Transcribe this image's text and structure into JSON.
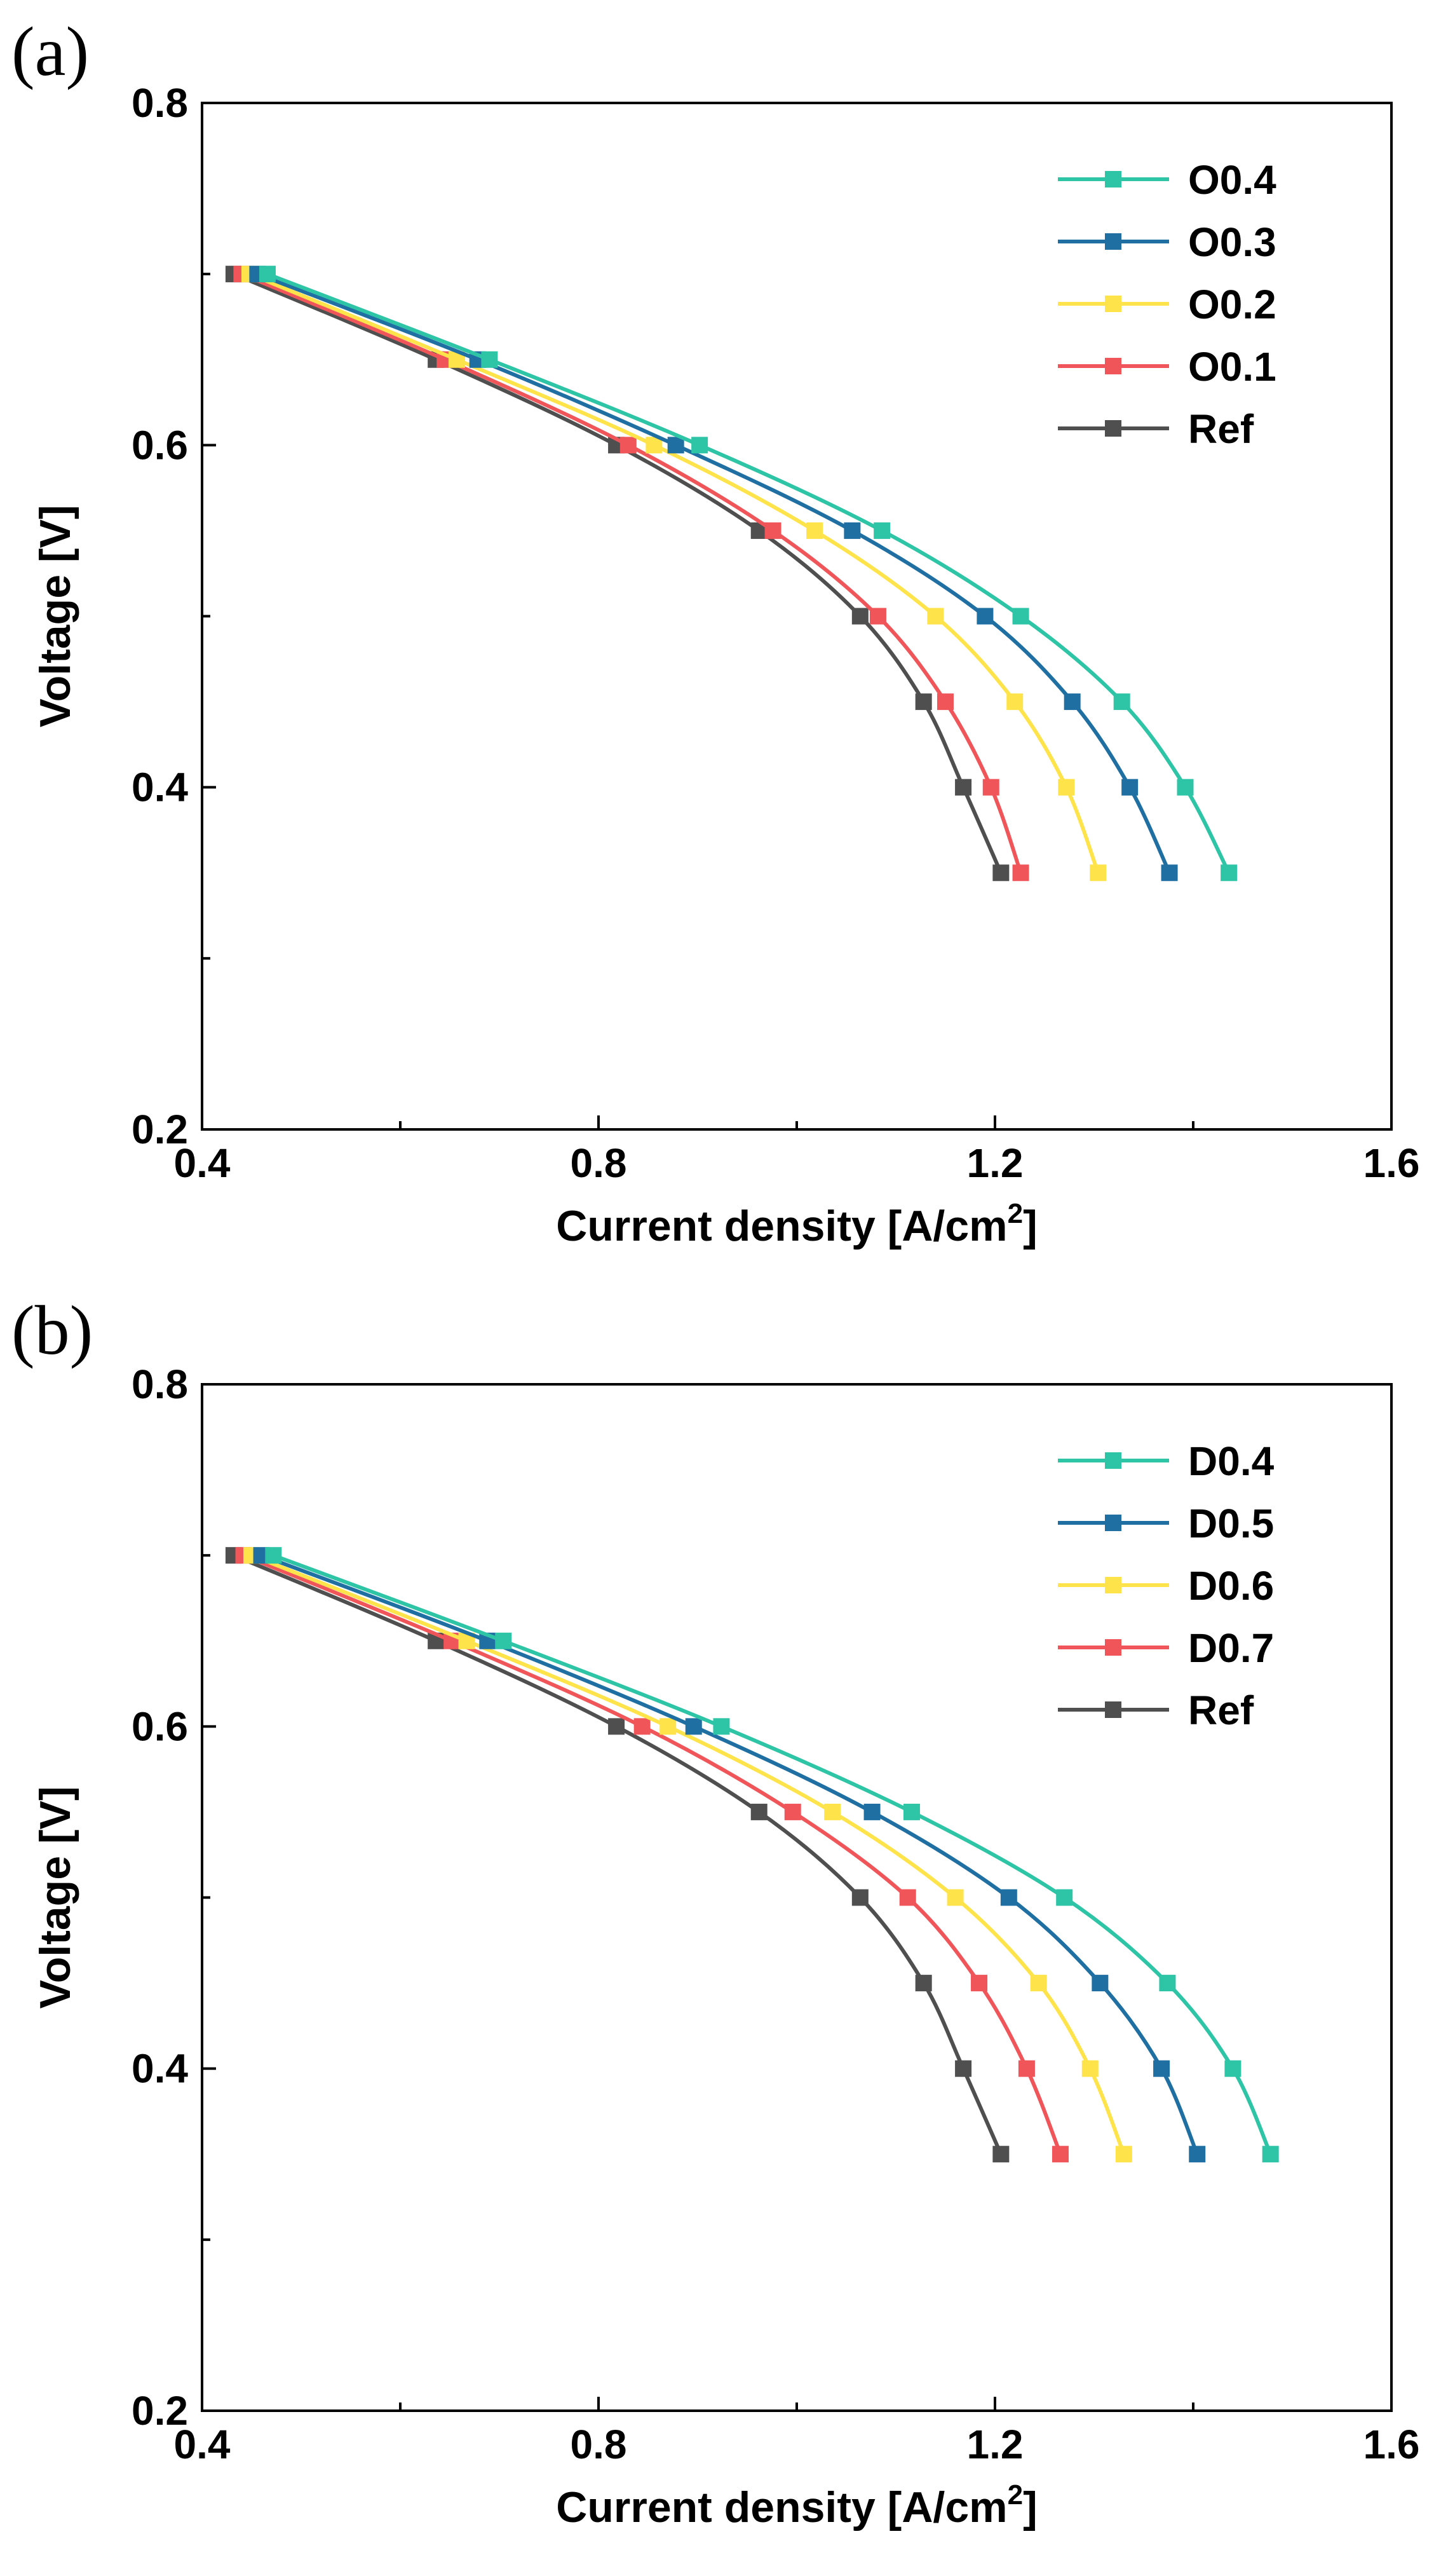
{
  "chart_data": [
    {
      "type": "line",
      "panel_label": "(a)",
      "title": "",
      "xlabel": "Current density [A/cm",
      "xlabel_sup": "2",
      "xlabel_end": "]",
      "ylabel": "Voltage [V]",
      "xlim": [
        0.4,
        1.6
      ],
      "ylim": [
        0.2,
        0.8
      ],
      "xticks": [
        "0.4",
        "0.8",
        "1.2",
        "1.6"
      ],
      "yticks": [
        "0.2",
        "0.4",
        "0.6",
        "0.8"
      ],
      "y": [
        0.7,
        0.65,
        0.6,
        0.55,
        0.5,
        0.45,
        0.4,
        0.35
      ],
      "legend_position": "top-right",
      "series": [
        {
          "name": "O0.4",
          "color": "#2ec4a6",
          "x": [
            0.466,
            0.69,
            0.902,
            1.086,
            1.226,
            1.328,
            1.392,
            1.436
          ]
        },
        {
          "name": "O0.3",
          "color": "#1f6fa3",
          "x": [
            0.456,
            0.678,
            0.878,
            1.056,
            1.19,
            1.278,
            1.336,
            1.376
          ]
        },
        {
          "name": "O0.2",
          "color": "#ffe34a",
          "x": [
            0.448,
            0.657,
            0.856,
            1.018,
            1.14,
            1.22,
            1.272,
            1.304
          ]
        },
        {
          "name": "O0.1",
          "color": "#f0555a",
          "x": [
            0.44,
            0.645,
            0.83,
            0.976,
            1.082,
            1.15,
            1.196,
            1.226
          ]
        },
        {
          "name": "Ref",
          "color": "#4f4f4f",
          "x": [
            0.432,
            0.636,
            0.818,
            0.962,
            1.064,
            1.128,
            1.168,
            1.206
          ]
        }
      ]
    },
    {
      "type": "line",
      "panel_label": "(b)",
      "title": "",
      "xlabel": "Current density [A/cm",
      "xlabel_sup": "2",
      "xlabel_end": "]",
      "ylabel": "Voltage [V]",
      "xlim": [
        0.4,
        1.6
      ],
      "ylim": [
        0.2,
        0.8
      ],
      "xticks": [
        "0.4",
        "0.8",
        "1.2",
        "1.6"
      ],
      "yticks": [
        "0.2",
        "0.4",
        "0.6",
        "0.8"
      ],
      "y": [
        0.7,
        0.65,
        0.6,
        0.55,
        0.5,
        0.45,
        0.4,
        0.35
      ],
      "legend_position": "top-right",
      "series": [
        {
          "name": "D0.4",
          "color": "#2ec4a6",
          "x": [
            0.472,
            0.704,
            0.924,
            1.116,
            1.27,
            1.374,
            1.44,
            1.478
          ]
        },
        {
          "name": "D0.5",
          "color": "#1f6fa3",
          "x": [
            0.46,
            0.688,
            0.896,
            1.076,
            1.214,
            1.306,
            1.368,
            1.404
          ]
        },
        {
          "name": "D0.6",
          "color": "#ffe34a",
          "x": [
            0.45,
            0.667,
            0.87,
            1.036,
            1.16,
            1.244,
            1.296,
            1.33
          ]
        },
        {
          "name": "D0.7",
          "color": "#f0555a",
          "x": [
            0.442,
            0.652,
            0.844,
            0.996,
            1.112,
            1.184,
            1.232,
            1.266
          ]
        },
        {
          "name": "Ref",
          "color": "#4f4f4f",
          "x": [
            0.432,
            0.636,
            0.818,
            0.962,
            1.064,
            1.128,
            1.168,
            1.206
          ]
        }
      ]
    }
  ]
}
